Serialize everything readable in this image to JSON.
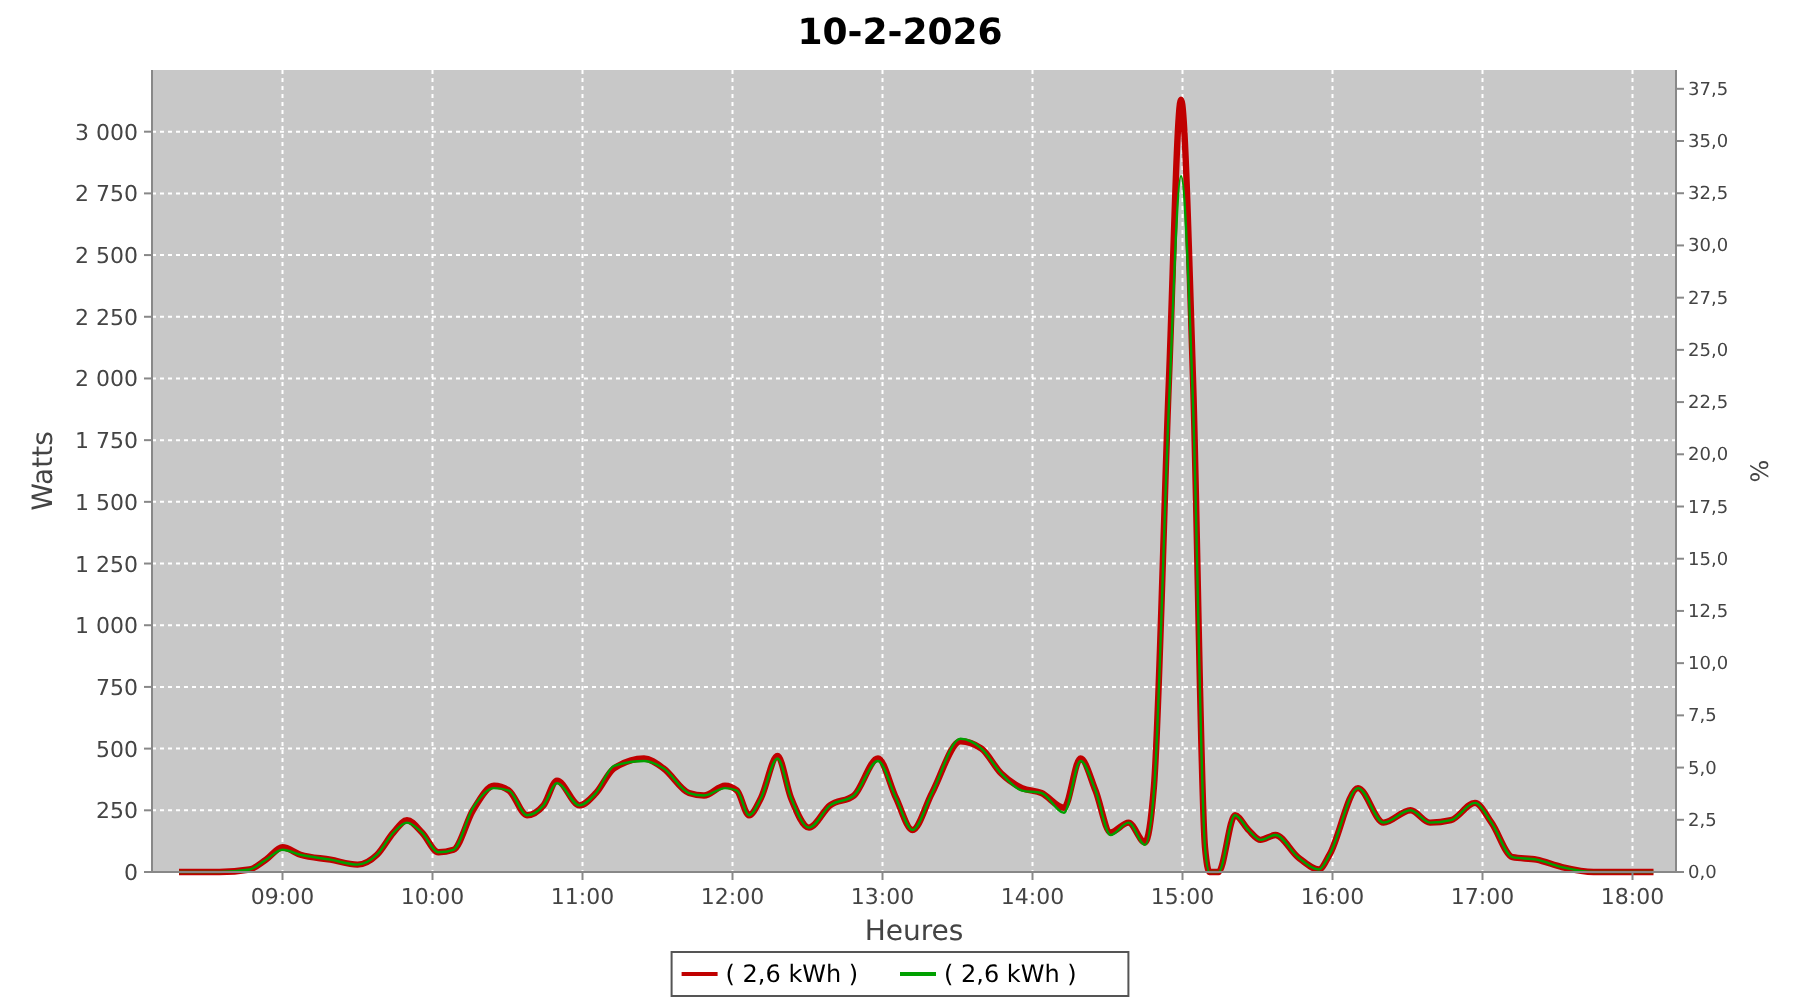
{
  "chart_data": {
    "type": "line",
    "title": "10-2-2026",
    "xlabel": "Heures",
    "ylabel": "Watts",
    "y2label": "%",
    "xlim": [
      8.13,
      18.29
    ],
    "xticks": [
      {
        "value": 9,
        "label": "09:00"
      },
      {
        "value": 10,
        "label": "10:00"
      },
      {
        "value": 11,
        "label": "11:00"
      },
      {
        "value": 12,
        "label": "12:00"
      },
      {
        "value": 13,
        "label": "13:00"
      },
      {
        "value": 14,
        "label": "14:00"
      },
      {
        "value": 15,
        "label": "15:00"
      },
      {
        "value": 16,
        "label": "16:00"
      },
      {
        "value": 17,
        "label": "17:00"
      },
      {
        "value": 18,
        "label": "18:00"
      }
    ],
    "ylim": [
      0,
      3250
    ],
    "yticks": [
      0,
      250,
      500,
      750,
      {
        "value": 1000,
        "label": "1 000"
      },
      {
        "value": 1250,
        "label": "1 250"
      },
      {
        "value": 1500,
        "label": "1 500"
      },
      {
        "value": 1750,
        "label": "1 750"
      },
      {
        "value": 2000,
        "label": "2 000"
      },
      {
        "value": 2250,
        "label": "2 250"
      },
      {
        "value": 2500,
        "label": "2 500"
      },
      {
        "value": 2750,
        "label": "2 750"
      },
      {
        "value": 3000,
        "label": "3 000"
      }
    ],
    "y2lim": [
      0,
      38.4
    ],
    "y2ticks": [
      {
        "value": 0,
        "label": "0,0"
      },
      {
        "value": 2.5,
        "label": "2,5"
      },
      {
        "value": 5,
        "label": "5,0"
      },
      {
        "value": 7.5,
        "label": "7,5"
      },
      {
        "value": 10,
        "label": "10,0"
      },
      {
        "value": 12.5,
        "label": "12,5"
      },
      {
        "value": 15,
        "label": "15,0"
      },
      {
        "value": 17.5,
        "label": "17,5"
      },
      {
        "value": 20,
        "label": "20,0"
      },
      {
        "value": 22.5,
        "label": "22,5"
      },
      {
        "value": 25,
        "label": "25,0"
      },
      {
        "value": 27.5,
        "label": "27,5"
      },
      {
        "value": 30,
        "label": "30,0"
      },
      {
        "value": 32.5,
        "label": "32,5"
      },
      {
        "value": 35,
        "label": "35,0"
      },
      {
        "value": 37.5,
        "label": "37,5"
      }
    ],
    "grid": true,
    "legend": "bottom",
    "marker": "none",
    "line_style": "solid",
    "x": [
      8.31,
      8.58,
      8.78,
      8.89,
      9.0,
      9.12,
      9.32,
      9.5,
      9.63,
      9.74,
      9.83,
      9.93,
      10.04,
      10.14,
      10.27,
      10.41,
      10.51,
      10.63,
      10.74,
      10.83,
      10.98,
      11.09,
      11.21,
      11.41,
      11.54,
      11.71,
      11.81,
      11.95,
      12.03,
      12.11,
      12.19,
      12.3,
      12.39,
      12.51,
      12.65,
      12.81,
      12.97,
      13.09,
      13.2,
      13.33,
      13.52,
      13.66,
      13.79,
      13.93,
      14.06,
      14.21,
      14.32,
      14.42,
      14.52,
      14.64,
      14.75,
      14.81,
      14.91,
      14.99,
      15.07,
      15.15,
      15.18,
      15.24,
      15.35,
      15.44,
      15.52,
      15.62,
      15.77,
      15.91,
      15.98,
      16.17,
      16.34,
      16.52,
      16.65,
      16.79,
      16.95,
      17.06,
      17.2,
      17.36,
      17.53,
      17.74,
      18.14
    ],
    "series": [
      {
        "name": "( 2,6 kWh )",
        "color": "#c00000",
        "values": [
          0,
          0,
          10,
          50,
          100,
          70,
          50,
          30,
          70,
          160,
          210,
          160,
          80,
          90,
          250,
          350,
          330,
          230,
          270,
          370,
          270,
          320,
          420,
          460,
          420,
          320,
          310,
          350,
          330,
          230,
          300,
          470,
          300,
          180,
          270,
          310,
          460,
          300,
          170,
          320,
          530,
          500,
          400,
          340,
          320,
          260,
          460,
          330,
          160,
          200,
          120,
          350,
          2000,
          3130,
          2000,
          100,
          0,
          0,
          230,
          170,
          130,
          150,
          60,
          10,
          70,
          340,
          200,
          250,
          200,
          210,
          280,
          200,
          60,
          50,
          20,
          0,
          0
        ]
      },
      {
        "name": "( 2,6 kWh )",
        "color": "#00a000",
        "values": [
          0,
          0,
          10,
          50,
          90,
          70,
          50,
          30,
          70,
          160,
          200,
          160,
          80,
          90,
          260,
          340,
          330,
          230,
          270,
          360,
          270,
          320,
          430,
          450,
          420,
          320,
          310,
          340,
          330,
          230,
          300,
          460,
          300,
          180,
          270,
          310,
          450,
          300,
          170,
          320,
          540,
          500,
          400,
          330,
          320,
          240,
          450,
          330,
          150,
          200,
          110,
          330,
          1900,
          2820,
          1900,
          100,
          0,
          0,
          230,
          170,
          130,
          150,
          60,
          10,
          70,
          340,
          200,
          250,
          200,
          210,
          280,
          200,
          60,
          50,
          20,
          0,
          0
        ]
      }
    ]
  }
}
